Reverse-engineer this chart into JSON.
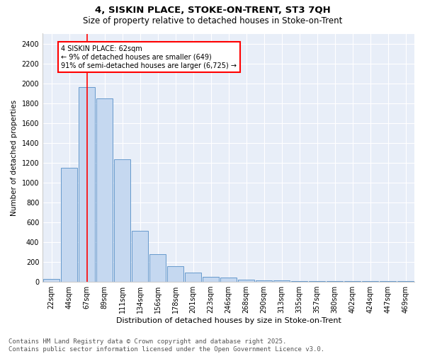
{
  "title1": "4, SISKIN PLACE, STOKE-ON-TRENT, ST3 7QH",
  "title2": "Size of property relative to detached houses in Stoke-on-Trent",
  "xlabel": "Distribution of detached houses by size in Stoke-on-Trent",
  "ylabel": "Number of detached properties",
  "categories": [
    "22sqm",
    "44sqm",
    "67sqm",
    "89sqm",
    "111sqm",
    "134sqm",
    "156sqm",
    "178sqm",
    "201sqm",
    "223sqm",
    "246sqm",
    "268sqm",
    "290sqm",
    "313sqm",
    "335sqm",
    "357sqm",
    "380sqm",
    "402sqm",
    "424sqm",
    "447sqm",
    "469sqm"
  ],
  "values": [
    28,
    1150,
    1960,
    1850,
    1230,
    515,
    275,
    155,
    90,
    50,
    40,
    20,
    15,
    15,
    5,
    3,
    3,
    4,
    3,
    3,
    3
  ],
  "bar_color": "#c5d8f0",
  "bar_edge_color": "#6699cc",
  "vline_x": 2,
  "vline_color": "red",
  "annotation_text": "4 SISKIN PLACE: 62sqm\n← 9% of detached houses are smaller (649)\n91% of semi-detached houses are larger (6,725) →",
  "annotation_box_color": "white",
  "annotation_box_edge_color": "red",
  "ylim": [
    0,
    2500
  ],
  "yticks": [
    0,
    200,
    400,
    600,
    800,
    1000,
    1200,
    1400,
    1600,
    1800,
    2000,
    2200,
    2400
  ],
  "bg_color": "#e8eef8",
  "grid_color": "white",
  "footer": "Contains HM Land Registry data © Crown copyright and database right 2025.\nContains public sector information licensed under the Open Government Licence v3.0.",
  "title1_fontsize": 9.5,
  "title2_fontsize": 8.5,
  "xlabel_fontsize": 8,
  "ylabel_fontsize": 7.5,
  "tick_fontsize": 7,
  "annot_fontsize": 7,
  "footer_fontsize": 6.5
}
